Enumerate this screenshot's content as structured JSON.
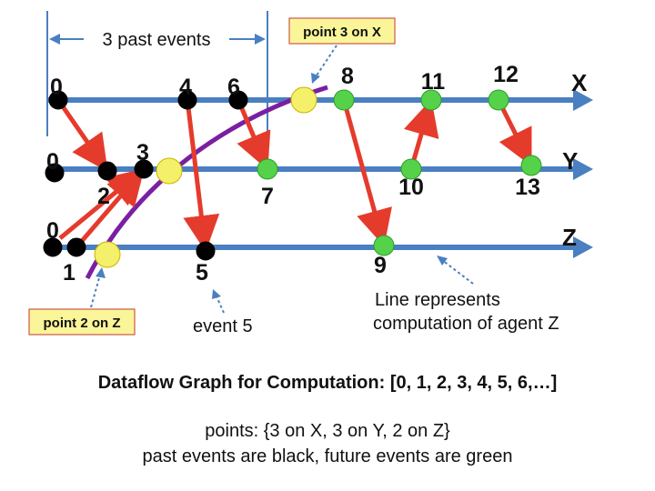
{
  "header_span_label": "3 past events",
  "callouts": {
    "x_point": "point 3 on X",
    "z_point": "point 2 on Z"
  },
  "axes": [
    {
      "name": "X"
    },
    {
      "name": "Y"
    },
    {
      "name": "Z"
    }
  ],
  "events": [
    {
      "id": "0",
      "line": "X",
      "state": "past"
    },
    {
      "id": "4",
      "line": "X",
      "state": "past"
    },
    {
      "id": "6",
      "line": "X",
      "state": "past"
    },
    {
      "id": "8",
      "line": "X",
      "state": "future"
    },
    {
      "id": "11",
      "line": "X",
      "state": "future"
    },
    {
      "id": "12",
      "line": "X",
      "state": "future"
    },
    {
      "id": "0",
      "line": "Y",
      "state": "past"
    },
    {
      "id": "2",
      "line": "Y",
      "state": "past"
    },
    {
      "id": "3",
      "line": "Y",
      "state": "past"
    },
    {
      "id": "7",
      "line": "Y",
      "state": "future"
    },
    {
      "id": "10",
      "line": "Y",
      "state": "future"
    },
    {
      "id": "13",
      "line": "Y",
      "state": "future"
    },
    {
      "id": "0",
      "line": "Z",
      "state": "past"
    },
    {
      "id": "1",
      "line": "Z",
      "state": "past"
    },
    {
      "id": "5",
      "line": "Z",
      "state": "past"
    },
    {
      "id": "9",
      "line": "Z",
      "state": "future"
    }
  ],
  "annotations": {
    "event5": "event 5",
    "line_note_1": "Line represents",
    "line_note_2": "computation of agent Z"
  },
  "captions": {
    "title": "Dataflow Graph for Computation: [0, 1, 2, 3, 4, 5, 6,…]",
    "points": "points:   {3 on X, 3 on Y, 2 on Z}",
    "legend": "past events are black, future events are green"
  },
  "colors": {
    "timeline": "#4a7fc1",
    "past": "#000000",
    "future": "#55d24a",
    "point": "#f5f06a",
    "dependency": "#e53b2c",
    "computation_line": "#7a1fa2",
    "callout_bg": "#fbf59a",
    "callout_border": "#c0392b"
  }
}
